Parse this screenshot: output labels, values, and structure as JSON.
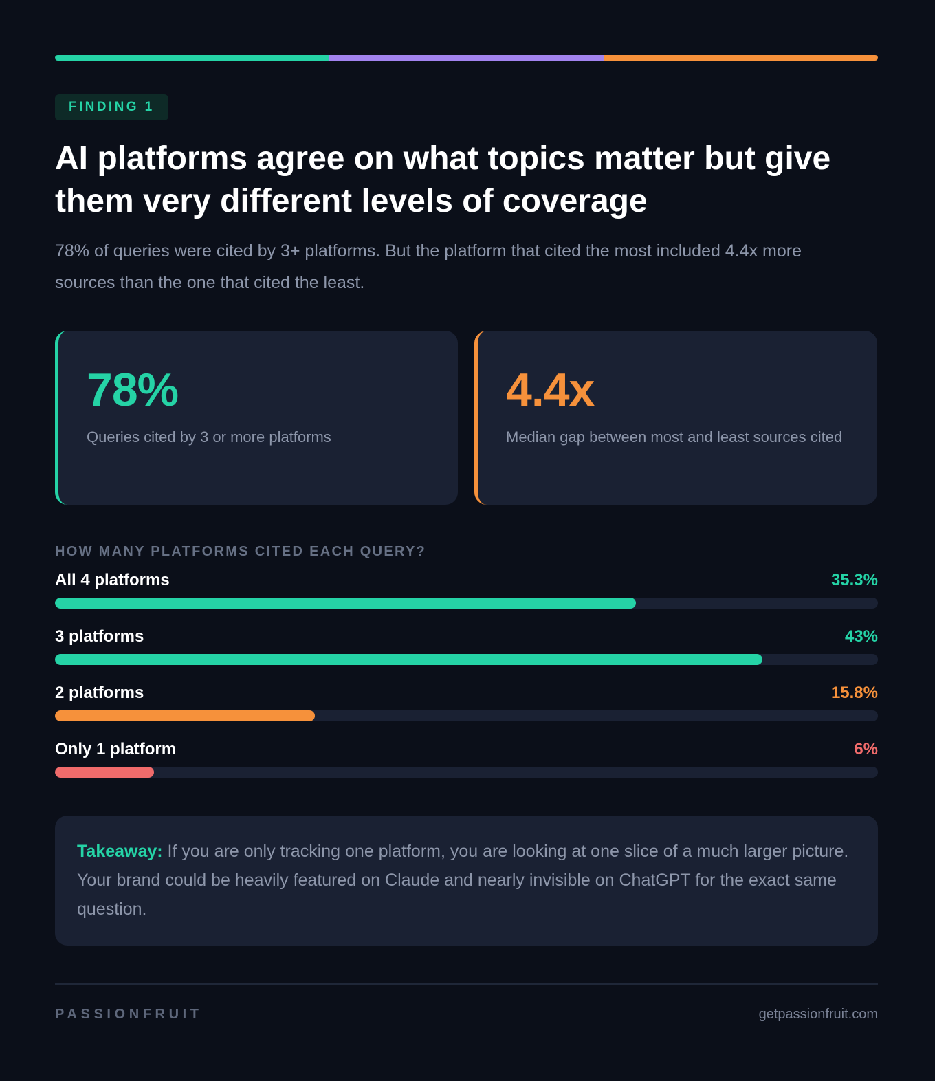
{
  "colors": {
    "background": "#0b0f19",
    "card": "#1a2133",
    "teal": "#25d3a6",
    "purple": "#a283ee",
    "orange": "#f6913b",
    "coral": "#f06b6b",
    "muted_text": "#8d96aa"
  },
  "top_bar": {
    "segments": [
      "#25d3a6",
      "#a283ee",
      "#f6913b"
    ]
  },
  "badge": "FINDING 1",
  "title": "AI platforms agree on what topics matter but give them very different levels of coverage",
  "subtitle": "78% of queries were cited by 3+ platforms. But the platform that cited the most included 4.4x more sources than the one that cited the least.",
  "stats": [
    {
      "value": "78%",
      "label": "Queries cited by 3 or more platforms",
      "color": "#25d3a6"
    },
    {
      "value": "4.4x",
      "label": "Median gap between most and least sources cited",
      "color": "#f6913b"
    }
  ],
  "chart_data": {
    "type": "bar",
    "title": "HOW MANY PLATFORMS CITED EACH QUERY?",
    "categories": [
      "All 4 platforms",
      "3 platforms",
      "2 platforms",
      "Only 1 platform"
    ],
    "values": [
      35.3,
      43,
      15.8,
      6
    ],
    "value_labels": [
      "35.3%",
      "43%",
      "15.8%",
      "6%"
    ],
    "colors": [
      "#25d3a6",
      "#25d3a6",
      "#f6913b",
      "#f06b6b"
    ],
    "xlim": [
      0,
      50
    ],
    "orientation": "horizontal"
  },
  "takeaway": {
    "lead": "Takeaway:",
    "text": " If you are only tracking one platform, you are looking at one slice of a much larger picture. Your brand could be heavily featured on Claude and nearly invisible on ChatGPT for the exact same question."
  },
  "footer": {
    "brand": "PASSIONFRUIT",
    "site": "getpassionfruit.com"
  }
}
